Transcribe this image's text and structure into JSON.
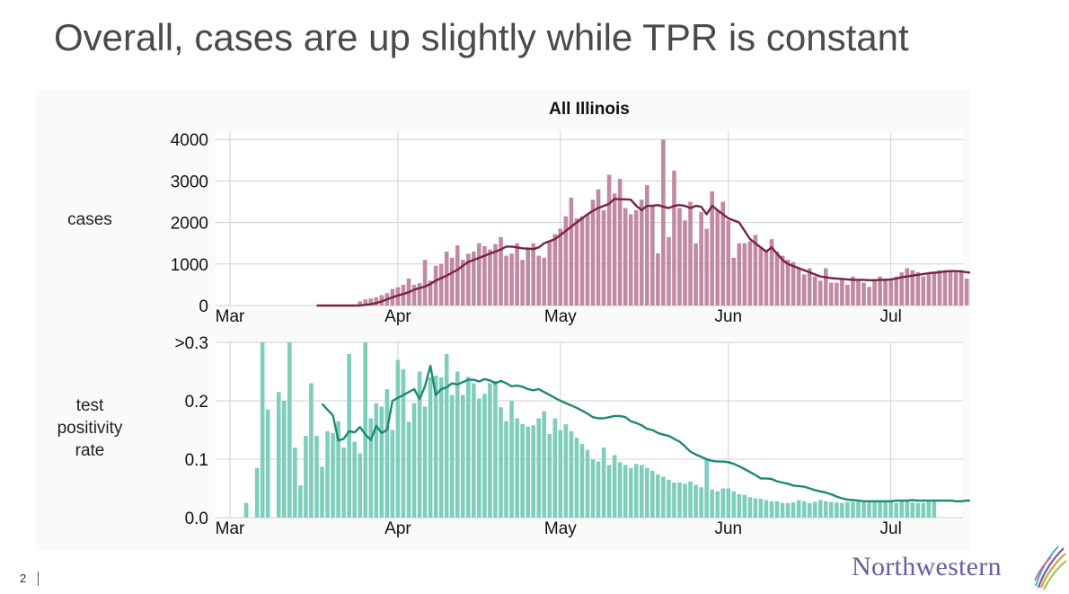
{
  "slide": {
    "title": "Overall, cases are up slightly while TPR is constant",
    "page_number": "2",
    "logo_text": "Northwestern"
  },
  "panels": {
    "cases_label": "cases",
    "tpr_label_lines": [
      "test",
      "positivity",
      "rate"
    ]
  },
  "colors": {
    "cases_bar": "#c08aa3",
    "cases_line": "#7a2145",
    "tpr_bar": "#7fcdbb",
    "tpr_line": "#1b8a74",
    "grid": "#d0d0d0",
    "logo": "#6b5ca5"
  },
  "chart_data": [
    {
      "type": "bar",
      "title": "All Illinois",
      "xlabel": "",
      "ylabel": "cases",
      "x_tick_labels": [
        "Mar",
        "Apr",
        "May",
        "Jun",
        "Jul"
      ],
      "x_ticks_day_index": [
        0,
        31,
        61,
        92,
        122
      ],
      "y_ticks": [
        0,
        1000,
        2000,
        3000,
        4000
      ],
      "y_tick_labels": [
        "0",
        "1000",
        "2000",
        "3000",
        "4000"
      ],
      "ylim": [
        0,
        4200
      ],
      "grid": true,
      "x_start_day_index": 16,
      "series": [
        {
          "kind": "bar",
          "values": [
            0,
            0,
            0,
            0,
            0,
            0,
            0,
            0,
            100,
            150,
            170,
            200,
            250,
            300,
            400,
            440,
            500,
            650,
            500,
            540,
            1100,
            600,
            960,
            1000,
            1300,
            1150,
            1450,
            1100,
            1250,
            1300,
            1500,
            1430,
            1350,
            1480,
            1650,
            1200,
            1250,
            1500,
            1100,
            1400,
            1500,
            1200,
            1150,
            1550,
            1720,
            1850,
            2150,
            2600,
            2100,
            2150,
            2200,
            2550,
            2800,
            2300,
            3150,
            2700,
            3050,
            2350,
            2200,
            2300,
            2550,
            2900,
            2400,
            1260,
            4000,
            1650,
            3250,
            2350,
            2050,
            2500,
            1500,
            2250,
            1850,
            2750,
            2300,
            2500,
            2050,
            1150,
            1500,
            1500,
            1550,
            1700,
            1400,
            1300,
            1600,
            1300,
            1200,
            1100,
            1050,
            900,
            750,
            900,
            700,
            600,
            900,
            550,
            550,
            650,
            500,
            700,
            600,
            550,
            450,
            600,
            700,
            650,
            650,
            700,
            800,
            900,
            850,
            800,
            700,
            750,
            800,
            850,
            850,
            850,
            850,
            850,
            650,
            650,
            620
          ]
        },
        {
          "kind": "line",
          "values": [
            0,
            0,
            0,
            0,
            0,
            0,
            0,
            0,
            0,
            20,
            30,
            60,
            100,
            150,
            200,
            240,
            280,
            320,
            380,
            420,
            460,
            520,
            600,
            660,
            720,
            790,
            860,
            960,
            1050,
            1100,
            1150,
            1200,
            1250,
            1300,
            1350,
            1420,
            1420,
            1400,
            1380,
            1370,
            1360,
            1400,
            1500,
            1550,
            1600,
            1700,
            1800,
            1900,
            2000,
            2100,
            2200,
            2280,
            2350,
            2400,
            2450,
            2570,
            2560,
            2560,
            2550,
            2400,
            2300,
            2400,
            2400,
            2420,
            2380,
            2350,
            2400,
            2420,
            2400,
            2350,
            2400,
            2380,
            2200,
            2400,
            2300,
            2200,
            2100,
            2050,
            2000,
            1800,
            1600,
            1500,
            1400,
            1300,
            1400,
            1250,
            1100,
            1000,
            950,
            900,
            850,
            800,
            750,
            700,
            680,
            660,
            650,
            640,
            630,
            620,
            620,
            620,
            610,
            610,
            620,
            620,
            630,
            650,
            680,
            700,
            720,
            740,
            760,
            780,
            790,
            800,
            820,
            830,
            830,
            820,
            800,
            790,
            780,
            780,
            770
          ]
        }
      ]
    },
    {
      "type": "bar",
      "title": "",
      "xlabel": "",
      "ylabel": "test positivity rate",
      "x_tick_labels": [
        "Mar",
        "Apr",
        "May",
        "Jun",
        "Jul"
      ],
      "x_ticks_day_index": [
        0,
        31,
        61,
        92,
        122
      ],
      "y_ticks": [
        0.0,
        0.1,
        0.2,
        0.3
      ],
      "y_tick_labels": [
        "0.0",
        "0.1",
        "0.2",
        ">0.3"
      ],
      "ylim": [
        0,
        0.3
      ],
      "grid": true,
      "bars_x_start_day_index": 3,
      "line_x_start_day_index": 17,
      "series": [
        {
          "kind": "bar",
          "values": [
            0.025,
            0,
            0.085,
            0.3,
            0.185,
            0,
            0.215,
            0.2,
            0.3,
            0.12,
            0.055,
            0.14,
            0.23,
            0.14,
            0.087,
            0.148,
            0.145,
            0.165,
            0.12,
            0.28,
            0.13,
            0.11,
            0.3,
            0.17,
            0.196,
            0.19,
            0.22,
            0.15,
            0.27,
            0.254,
            0.164,
            0.196,
            0.25,
            0.19,
            0.24,
            0.243,
            0.24,
            0.28,
            0.21,
            0.25,
            0.21,
            0.241,
            0.23,
            0.204,
            0.212,
            0.23,
            0.234,
            0.189,
            0.165,
            0.2,
            0.17,
            0.16,
            0.156,
            0.158,
            0.17,
            0.182,
            0.143,
            0.17,
            0.15,
            0.16,
            0.148,
            0.137,
            0.126,
            0.116,
            0.1,
            0.096,
            0.12,
            0.09,
            0.107,
            0.095,
            0.09,
            0.085,
            0.092,
            0.09,
            0.085,
            0.08,
            0.074,
            0.07,
            0.065,
            0.06,
            0.06,
            0.058,
            0.062,
            0.056,
            0.052,
            0.1,
            0.048,
            0.045,
            0.05,
            0.05,
            0.045,
            0.04,
            0.039,
            0.035,
            0.033,
            0.032,
            0.03,
            0.028,
            0.028,
            0.025,
            0.025,
            0.026,
            0.03,
            0.028,
            0.025,
            0.027,
            0.03,
            0.028,
            0.027,
            0.026,
            0.025,
            0.027,
            0.027,
            0.027,
            0.026,
            0.026,
            0.028,
            0.028,
            0.029,
            0.027,
            0.025,
            0.028,
            0.028,
            0.026,
            0.025,
            0.025,
            0.027,
            0.03
          ]
        },
        {
          "kind": "line",
          "values": [
            0.195,
            0.185,
            0.175,
            0.132,
            0.135,
            0.148,
            0.146,
            0.155,
            0.142,
            0.133,
            0.157,
            0.145,
            0.15,
            0.2,
            0.205,
            0.21,
            0.215,
            0.22,
            0.203,
            0.225,
            0.26,
            0.21,
            0.22,
            0.223,
            0.23,
            0.228,
            0.232,
            0.236,
            0.236,
            0.233,
            0.237,
            0.235,
            0.23,
            0.234,
            0.23,
            0.225,
            0.226,
            0.224,
            0.22,
            0.218,
            0.22,
            0.215,
            0.21,
            0.205,
            0.2,
            0.196,
            0.192,
            0.188,
            0.183,
            0.178,
            0.172,
            0.17,
            0.17,
            0.172,
            0.174,
            0.174,
            0.172,
            0.165,
            0.162,
            0.158,
            0.152,
            0.15,
            0.145,
            0.142,
            0.14,
            0.135,
            0.13,
            0.122,
            0.113,
            0.108,
            0.104,
            0.1,
            0.097,
            0.096,
            0.096,
            0.095,
            0.092,
            0.088,
            0.083,
            0.078,
            0.073,
            0.067,
            0.067,
            0.066,
            0.062,
            0.06,
            0.058,
            0.055,
            0.054,
            0.053,
            0.05,
            0.047,
            0.045,
            0.043,
            0.04,
            0.036,
            0.033,
            0.031,
            0.03,
            0.029,
            0.028,
            0.028,
            0.028,
            0.028,
            0.028,
            0.028,
            0.029,
            0.029,
            0.029,
            0.03,
            0.029,
            0.029,
            0.029,
            0.029,
            0.029,
            0.029,
            0.029,
            0.028,
            0.028,
            0.029,
            0.029
          ]
        }
      ]
    }
  ]
}
